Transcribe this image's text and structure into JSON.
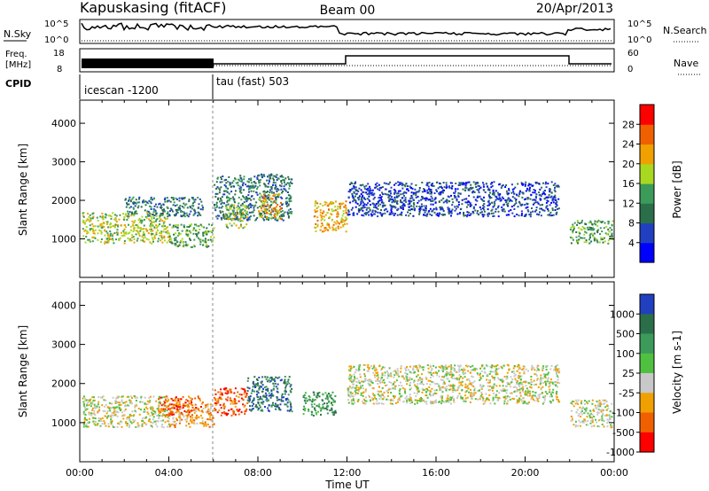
{
  "header": {
    "station": "Kapuskasing (fitACF)",
    "beam": "Beam 00",
    "date": "20/Apr/2013"
  },
  "nsky_panel": {
    "left_label": "N.Sky",
    "right_label": "N.Search",
    "left_ticks": [
      "10^5",
      "10^0"
    ],
    "right_ticks": [
      "10^5",
      "10^0"
    ]
  },
  "freq_panel": {
    "left_label_1": "Freq.",
    "left_label_2": "[MHz]",
    "right_label": "Nave",
    "left_ticks": [
      "18",
      "8"
    ],
    "right_ticks": [
      "60",
      "0"
    ]
  },
  "cpid_panel": {
    "label": "CPID",
    "modes": [
      "icescan -1200",
      "tau (fast) 503"
    ]
  },
  "chart_data": [
    {
      "type": "heatmap",
      "name": "power",
      "ylabel": "Slant Range [km]",
      "ylim": [
        0,
        4600
      ],
      "yticks": [
        "1000",
        "2000",
        "3000",
        "4000"
      ],
      "xlim": [
        0,
        24
      ],
      "colorbar_label": "Power [dB]",
      "colorbar_ticks": [
        "4",
        "8",
        "12",
        "16",
        "20",
        "24",
        "28"
      ],
      "colors": [
        "#0000ff",
        "#2040c0",
        "#2a6f4a",
        "#3c9a5a",
        "#a8d820",
        "#f0a000",
        "#f06000",
        "#ff0000"
      ],
      "echo_regions": [
        {
          "t0": 0.1,
          "t1": 4.0,
          "r0": 900,
          "r1": 1700,
          "level": 4
        },
        {
          "t0": 4.0,
          "t1": 6.0,
          "r0": 800,
          "r1": 1400,
          "level": 3
        },
        {
          "t0": 2.0,
          "t1": 5.5,
          "r0": 1600,
          "r1": 2100,
          "level": 2
        },
        {
          "t0": 6.0,
          "t1": 9.5,
          "r0": 1500,
          "r1": 2700,
          "level": 2
        },
        {
          "t0": 6.5,
          "t1": 7.5,
          "r0": 1300,
          "r1": 1900,
          "level": 4
        },
        {
          "t0": 8.0,
          "t1": 9.0,
          "r0": 1500,
          "r1": 2200,
          "level": 5
        },
        {
          "t0": 10.5,
          "t1": 12.0,
          "r0": 1200,
          "r1": 2000,
          "level": 5
        },
        {
          "t0": 12.0,
          "t1": 21.5,
          "r0": 1600,
          "r1": 2500,
          "level": 1
        },
        {
          "t0": 22.0,
          "t1": 23.9,
          "r0": 900,
          "r1": 1500,
          "level": 3
        }
      ]
    },
    {
      "type": "heatmap",
      "name": "velocity",
      "ylabel": "Slant Range [km]",
      "ylim": [
        0,
        4600
      ],
      "yticks": [
        "1000",
        "2000",
        "3000",
        "4000"
      ],
      "xlim": [
        0,
        24
      ],
      "xticks": [
        "00:00",
        "04:00",
        "08:00",
        "12:00",
        "16:00",
        "20:00",
        "00:00"
      ],
      "xlabel": "Time UT",
      "colorbar_label": "Velocity [m s-1]",
      "colorbar_ticks": [
        "1000",
        "500",
        "100",
        "25",
        "-25",
        "-100",
        "-500",
        "-1000"
      ],
      "colors": [
        "#2040c0",
        "#2a6f4a",
        "#3c9a5a",
        "#50c040",
        "#c8c8c8",
        "#f0a000",
        "#f06000",
        "#ff0000"
      ],
      "echo_regions": [
        {
          "t0": 0.1,
          "t1": 4.0,
          "r0": 900,
          "r1": 1700,
          "level": 4
        },
        {
          "t0": 4.0,
          "t1": 6.0,
          "r0": 900,
          "r1": 1500,
          "level": 5
        },
        {
          "t0": 3.5,
          "t1": 5.5,
          "r0": 1200,
          "r1": 1700,
          "level": 6
        },
        {
          "t0": 6.0,
          "t1": 7.5,
          "r0": 1200,
          "r1": 1900,
          "level": 6
        },
        {
          "t0": 7.5,
          "t1": 9.5,
          "r0": 1300,
          "r1": 2200,
          "level": 1
        },
        {
          "t0": 10.0,
          "t1": 11.5,
          "r0": 1200,
          "r1": 1800,
          "level": 2
        },
        {
          "t0": 12.0,
          "t1": 21.5,
          "r0": 1500,
          "r1": 2500,
          "level": 4
        },
        {
          "t0": 22.0,
          "t1": 23.9,
          "r0": 900,
          "r1": 1600,
          "level": 4
        }
      ]
    }
  ]
}
